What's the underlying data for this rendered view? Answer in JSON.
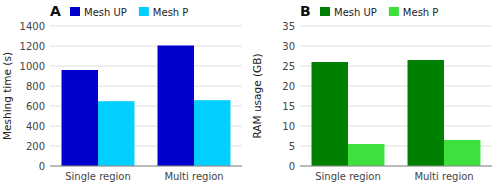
{
  "chart_data": [
    {
      "type": "bar",
      "title": "A",
      "categories": [
        "Single region",
        "Multi region"
      ],
      "series": [
        {
          "name": "Mesh UP",
          "color": "#0000CD",
          "values": [
            960,
            1205
          ]
        },
        {
          "name": "Mesh P",
          "color": "#00CFFF",
          "values": [
            648,
            658
          ]
        }
      ],
      "ylabel": "Meshing time (s)",
      "ylim": [
        0,
        1400
      ],
      "yticks": [
        0,
        200,
        400,
        600,
        800,
        1000,
        1200,
        1400
      ],
      "grid": true,
      "legend": "upper left"
    },
    {
      "type": "bar",
      "title": "B",
      "categories": [
        "Single region",
        "Multi region"
      ],
      "series": [
        {
          "name": "Mesh UP",
          "color": "#008000",
          "values": [
            26,
            26.5
          ]
        },
        {
          "name": "Mesh P",
          "color": "#3EE03E",
          "values": [
            5.5,
            6.5
          ]
        }
      ],
      "ylabel": "RAM usage (GB)",
      "ylim": [
        0,
        35
      ],
      "yticks": [
        0,
        5,
        10,
        15,
        20,
        25,
        30,
        35
      ],
      "grid": true,
      "legend": "upper left"
    }
  ]
}
